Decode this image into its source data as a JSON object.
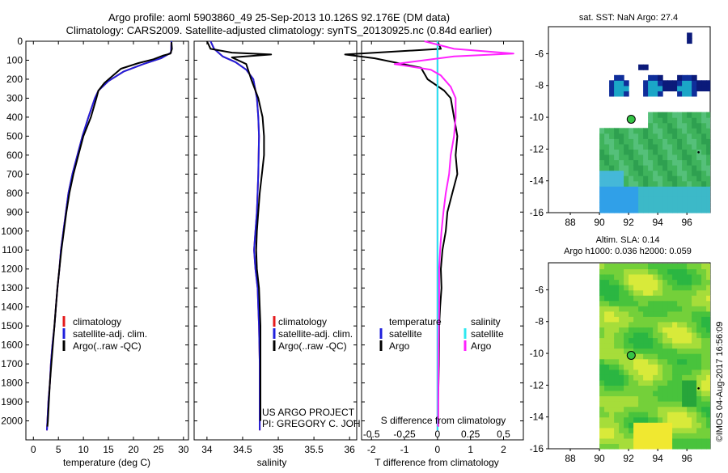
{
  "header": {
    "line1": "Argo profile: aoml 5903860_49 25-Sep-2013 10.126S 92.176E (DM data)",
    "line2": "Climatology: CARS2009. Satellite-adjusted climatology: synTS_20130925.nc (0.84d earlier)"
  },
  "footer": {
    "stamp": "©IMOS 04-Aug-2017 16:56:09",
    "project": "US ARGO PROJECT",
    "pi": "PI: GREGORY C. JOHNSON"
  },
  "colors": {
    "climatology": "#e41a1c",
    "satellite": "#1f1fdc",
    "argo": "#000000",
    "salinity_satellite": "#2ee8f0",
    "salinity_argo": "#ff22ff"
  },
  "chart_data": [
    {
      "type": "line",
      "panel": "temperature",
      "xlabel": "temperature (deg C)",
      "ylabel": "",
      "xlim": [
        -1.5,
        31
      ],
      "ylim": [
        2100,
        0
      ],
      "xticks": [
        0,
        5,
        10,
        15,
        20,
        25,
        30
      ],
      "yticks": [
        0,
        100,
        200,
        300,
        400,
        500,
        600,
        700,
        800,
        900,
        1000,
        1100,
        1200,
        1300,
        1400,
        1500,
        1600,
        1700,
        1800,
        1900,
        2000
      ],
      "legend": [
        "climatology",
        "satellite-adj. clim.",
        "Argo(..raw -QC)"
      ],
      "series": [
        {
          "name": "climatology",
          "color_key": "climatology",
          "points": [
            [
              27.6,
              0
            ],
            [
              27.5,
              60
            ],
            [
              25.5,
              90
            ],
            [
              22,
              120
            ],
            [
              18,
              160
            ],
            [
              15,
              210
            ],
            [
              13,
              260
            ],
            [
              12.3,
              300
            ],
            [
              11,
              400
            ],
            [
              9.8,
              500
            ],
            [
              8.8,
              600
            ],
            [
              7.8,
              700
            ],
            [
              7,
              800
            ],
            [
              6.5,
              900
            ],
            [
              6,
              1000
            ],
            [
              5.5,
              1100
            ],
            [
              5.2,
              1200
            ],
            [
              4.8,
              1300
            ],
            [
              4.5,
              1400
            ],
            [
              4.2,
              1500
            ],
            [
              3.8,
              1600
            ],
            [
              3.5,
              1700
            ],
            [
              3.3,
              1800
            ],
            [
              3,
              1900
            ],
            [
              2.8,
              2000
            ],
            [
              2.7,
              2050
            ]
          ]
        },
        {
          "name": "satellite-adj. clim.",
          "color_key": "satellite",
          "points": [
            [
              27.6,
              0
            ],
            [
              27.5,
              60
            ],
            [
              25.5,
              90
            ],
            [
              22,
              120
            ],
            [
              18,
              160
            ],
            [
              15,
              210
            ],
            [
              13,
              260
            ],
            [
              12.3,
              300
            ],
            [
              11,
              400
            ],
            [
              9.8,
              500
            ],
            [
              8.8,
              600
            ],
            [
              7.8,
              700
            ],
            [
              7,
              800
            ],
            [
              6.5,
              900
            ],
            [
              6,
              1000
            ],
            [
              5.5,
              1100
            ],
            [
              5.2,
              1200
            ],
            [
              4.8,
              1300
            ],
            [
              4.5,
              1400
            ],
            [
              4.2,
              1500
            ],
            [
              3.8,
              1600
            ],
            [
              3.5,
              1700
            ],
            [
              3.3,
              1800
            ],
            [
              3,
              1900
            ],
            [
              2.8,
              2000
            ],
            [
              2.7,
              2050
            ]
          ]
        },
        {
          "name": "Argo(..raw -QC)",
          "color_key": "argo",
          "points": [
            [
              27.6,
              5
            ],
            [
              27.7,
              40
            ],
            [
              27.4,
              65
            ],
            [
              26,
              75
            ],
            [
              24,
              95
            ],
            [
              21,
              115
            ],
            [
              17.5,
              145
            ],
            [
              15.5,
              190
            ],
            [
              14.2,
              220
            ],
            [
              13,
              260
            ],
            [
              12.6,
              300
            ],
            [
              11.5,
              400
            ],
            [
              10,
              500
            ],
            [
              9,
              600
            ],
            [
              8,
              700
            ],
            [
              7.2,
              800
            ],
            [
              6.6,
              900
            ],
            [
              6.1,
              1000
            ],
            [
              5.6,
              1100
            ],
            [
              5.2,
              1200
            ],
            [
              4.8,
              1300
            ],
            [
              4.5,
              1400
            ],
            [
              4.2,
              1500
            ],
            [
              3.9,
              1600
            ],
            [
              3.6,
              1700
            ],
            [
              3.3,
              1800
            ],
            [
              3.1,
              1900
            ],
            [
              2.9,
              2000
            ],
            [
              2.8,
              2030
            ]
          ]
        }
      ]
    },
    {
      "type": "line",
      "panel": "salinity",
      "xlabel": "salinity",
      "ylabel": "",
      "xlim": [
        33.82,
        36.1
      ],
      "ylim": [
        2100,
        0
      ],
      "xticks": [
        34,
        34.5,
        35,
        35.5,
        36
      ],
      "legend": [
        "climatology",
        "satellite-adj. clim.",
        "Argo(..raw -QC)"
      ],
      "series": [
        {
          "name": "climatology",
          "color_key": "climatology",
          "points": [
            [
              34.05,
              0
            ],
            [
              34.1,
              40
            ],
            [
              34.22,
              80
            ],
            [
              34.4,
              110
            ],
            [
              34.55,
              150
            ],
            [
              34.65,
              200
            ],
            [
              34.7,
              300
            ],
            [
              34.72,
              400
            ],
            [
              34.73,
              500
            ],
            [
              34.72,
              700
            ],
            [
              34.7,
              900
            ],
            [
              34.68,
              1000
            ],
            [
              34.66,
              1100
            ],
            [
              34.68,
              1200
            ],
            [
              34.71,
              1300
            ],
            [
              34.72,
              1400
            ],
            [
              34.73,
              1500
            ],
            [
              34.74,
              1700
            ],
            [
              34.74,
              2000
            ],
            [
              34.74,
              2050
            ]
          ]
        },
        {
          "name": "satellite-adj. clim.",
          "color_key": "satellite",
          "points": [
            [
              34.05,
              0
            ],
            [
              34.1,
              40
            ],
            [
              34.22,
              80
            ],
            [
              34.4,
              110
            ],
            [
              34.55,
              150
            ],
            [
              34.65,
              200
            ],
            [
              34.7,
              300
            ],
            [
              34.72,
              400
            ],
            [
              34.73,
              500
            ],
            [
              34.72,
              700
            ],
            [
              34.7,
              900
            ],
            [
              34.68,
              1000
            ],
            [
              34.66,
              1100
            ],
            [
              34.68,
              1200
            ],
            [
              34.71,
              1300
            ],
            [
              34.72,
              1400
            ],
            [
              34.73,
              1500
            ],
            [
              34.74,
              1700
            ],
            [
              34.74,
              2000
            ],
            [
              34.74,
              2050
            ]
          ]
        },
        {
          "name": "Argo(..raw -QC)",
          "color_key": "argo",
          "points": [
            [
              34.0,
              0
            ],
            [
              34.05,
              40
            ],
            [
              34.35,
              60
            ],
            [
              34.9,
              70
            ],
            [
              34.35,
              85
            ],
            [
              34.55,
              120
            ],
            [
              34.62,
              200
            ],
            [
              34.72,
              300
            ],
            [
              34.78,
              400
            ],
            [
              34.8,
              500
            ],
            [
              34.8,
              600
            ],
            [
              34.77,
              700
            ],
            [
              34.74,
              800
            ],
            [
              34.72,
              900
            ],
            [
              34.7,
              1000
            ],
            [
              34.69,
              1100
            ],
            [
              34.7,
              1200
            ],
            [
              34.73,
              1300
            ],
            [
              34.74,
              1400
            ],
            [
              34.75,
              1500
            ],
            [
              34.75,
              1600
            ],
            [
              34.75,
              2000
            ]
          ]
        }
      ]
    },
    {
      "type": "line",
      "panel": "difference",
      "xlabel": "T difference from climatology",
      "x2label": "S difference from climatology",
      "xlim": [
        -2.3,
        2.6
      ],
      "ylim": [
        2100,
        0
      ],
      "xticks": [
        -2,
        -1,
        0,
        1,
        2
      ],
      "x2ticks_labels": [
        "-0.5",
        "-0.25",
        "0",
        "0.25",
        "0.5"
      ],
      "x2ticks_positions": [
        -2,
        -1,
        0,
        1,
        2
      ],
      "legend_temperature": [
        "temperature",
        "satellite",
        "Argo"
      ],
      "legend_salinity": [
        "salinity",
        "satellite",
        "Argo"
      ],
      "series": [
        {
          "name": "temperature satellite",
          "color_key": "satellite",
          "points": [
            [
              0,
              0
            ],
            [
              0,
              2050
            ]
          ]
        },
        {
          "name": "temperature Argo",
          "color_key": "argo",
          "points": [
            [
              0,
              0
            ],
            [
              0.1,
              40
            ],
            [
              -2.8,
              70
            ],
            [
              -1.9,
              90
            ],
            [
              -0.5,
              140
            ],
            [
              -0.3,
              200
            ],
            [
              0.2,
              260
            ],
            [
              0.4,
              300
            ],
            [
              0.5,
              400
            ],
            [
              0.6,
              500
            ],
            [
              0.55,
              600
            ],
            [
              0.6,
              700
            ],
            [
              0.45,
              800
            ],
            [
              0.3,
              900
            ],
            [
              0.25,
              1000
            ],
            [
              0.15,
              1100
            ],
            [
              0.1,
              1200
            ],
            [
              0.12,
              1300
            ],
            [
              0.08,
              1400
            ],
            [
              0.05,
              1500
            ],
            [
              0.04,
              1700
            ],
            [
              0.02,
              1900
            ],
            [
              0.02,
              2030
            ]
          ]
        },
        {
          "name": "salinity satellite",
          "color_key": "salinity_satellite",
          "points": [
            [
              0,
              0
            ],
            [
              0,
              2050
            ]
          ]
        },
        {
          "name": "salinity Argo",
          "color_key": "salinity_argo",
          "points": [
            [
              -0.4,
              0
            ],
            [
              0.5,
              40
            ],
            [
              2.3,
              65
            ],
            [
              0.5,
              80
            ],
            [
              -1.3,
              120
            ],
            [
              -0.2,
              150
            ],
            [
              0.1,
              180
            ],
            [
              0.4,
              240
            ],
            [
              0.55,
              300
            ],
            [
              0.55,
              400
            ],
            [
              0.5,
              500
            ],
            [
              0.4,
              600
            ],
            [
              0.35,
              700
            ],
            [
              0.25,
              800
            ],
            [
              0.18,
              900
            ],
            [
              0.12,
              1000
            ],
            [
              0.08,
              1100
            ],
            [
              0.05,
              1200
            ],
            [
              0.05,
              1400
            ],
            [
              0.03,
              1600
            ],
            [
              0.02,
              2030
            ]
          ]
        }
      ]
    },
    {
      "type": "heatmap",
      "panel": "map-sst",
      "title": "sat. SST: NaN Argo: 27.4",
      "xlim": [
        86.5,
        97.6
      ],
      "ylim": [
        -16,
        -4.3
      ],
      "xticks": [
        88,
        90,
        92,
        94,
        96
      ],
      "yticks": [
        -6,
        -8,
        -10,
        -12,
        -14,
        -16
      ],
      "argo_position": {
        "lon": 92.176,
        "lat": -10.126
      },
      "nearby_points": [
        {
          "lon": 96.8,
          "lat": -12.2
        }
      ]
    },
    {
      "type": "heatmap",
      "panel": "map-sla",
      "title": "Altim. SLA: 0.14",
      "subtitle": "Argo h1000: 0.036 h2000: 0.059",
      "xlim": [
        86.5,
        97.6
      ],
      "ylim": [
        -16,
        -4.3
      ],
      "xticks": [
        88,
        90,
        92,
        94,
        96
      ],
      "yticks": [
        -6,
        -8,
        -10,
        -12,
        -14,
        -16
      ],
      "argo_position": {
        "lon": 92.176,
        "lat": -10.126
      },
      "nearby_points": [
        {
          "lon": 96.8,
          "lat": -12.2
        }
      ]
    }
  ]
}
